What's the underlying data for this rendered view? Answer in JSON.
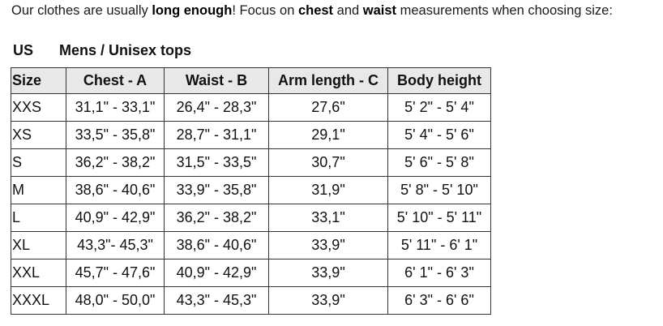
{
  "intro": {
    "part1": "Our clothes are usually ",
    "bold1": "long enough",
    "part2": "! Focus on ",
    "bold2": "chest",
    "part3": " and ",
    "bold3": "waist",
    "part4": " measurements when choosing size:"
  },
  "heading": {
    "region": "US",
    "category": "Mens / Unisex tops"
  },
  "table": {
    "headers": [
      "Size",
      "Chest - A",
      "Waist - B",
      "Arm length - C",
      "Body height"
    ],
    "rows": [
      [
        "XXS",
        "31,1\" - 33,1\"",
        "26,4\" - 28,3\"",
        "27,6\"",
        "5' 2\" - 5' 4\""
      ],
      [
        "XS",
        "33,5\" - 35,8\"",
        "28,7\" - 31,1\"",
        "29,1\"",
        "5' 4\" - 5' 6\""
      ],
      [
        "S",
        "36,2\" - 38,2\"",
        "31,5\" - 33,5\"",
        "30,7\"",
        "5' 6\" - 5' 8\""
      ],
      [
        "M",
        "38,6\" - 40,6\"",
        "33,9\" - 35,8\"",
        "31,9\"",
        "5' 8\" - 5' 10\""
      ],
      [
        "L",
        "40,9\" - 42,9\"",
        "36,2\" - 38,2\"",
        "33,1\"",
        "5' 10\" - 5' 11\""
      ],
      [
        "XL",
        "43,3\"- 45,3\"",
        "38,6\" - 40,6\"",
        "33,9\"",
        "5' 11\" - 6' 1\""
      ],
      [
        "XXL",
        "45,7\" - 47,6\"",
        "40,9\" - 42,9\"",
        "33,9\"",
        "6' 1\" - 6' 3\""
      ],
      [
        "XXXL",
        "48,0\" - 50,0\"",
        "43,3\" - 45,3\"",
        "33,9\"",
        "6' 3\" - 6' 6\""
      ]
    ]
  }
}
